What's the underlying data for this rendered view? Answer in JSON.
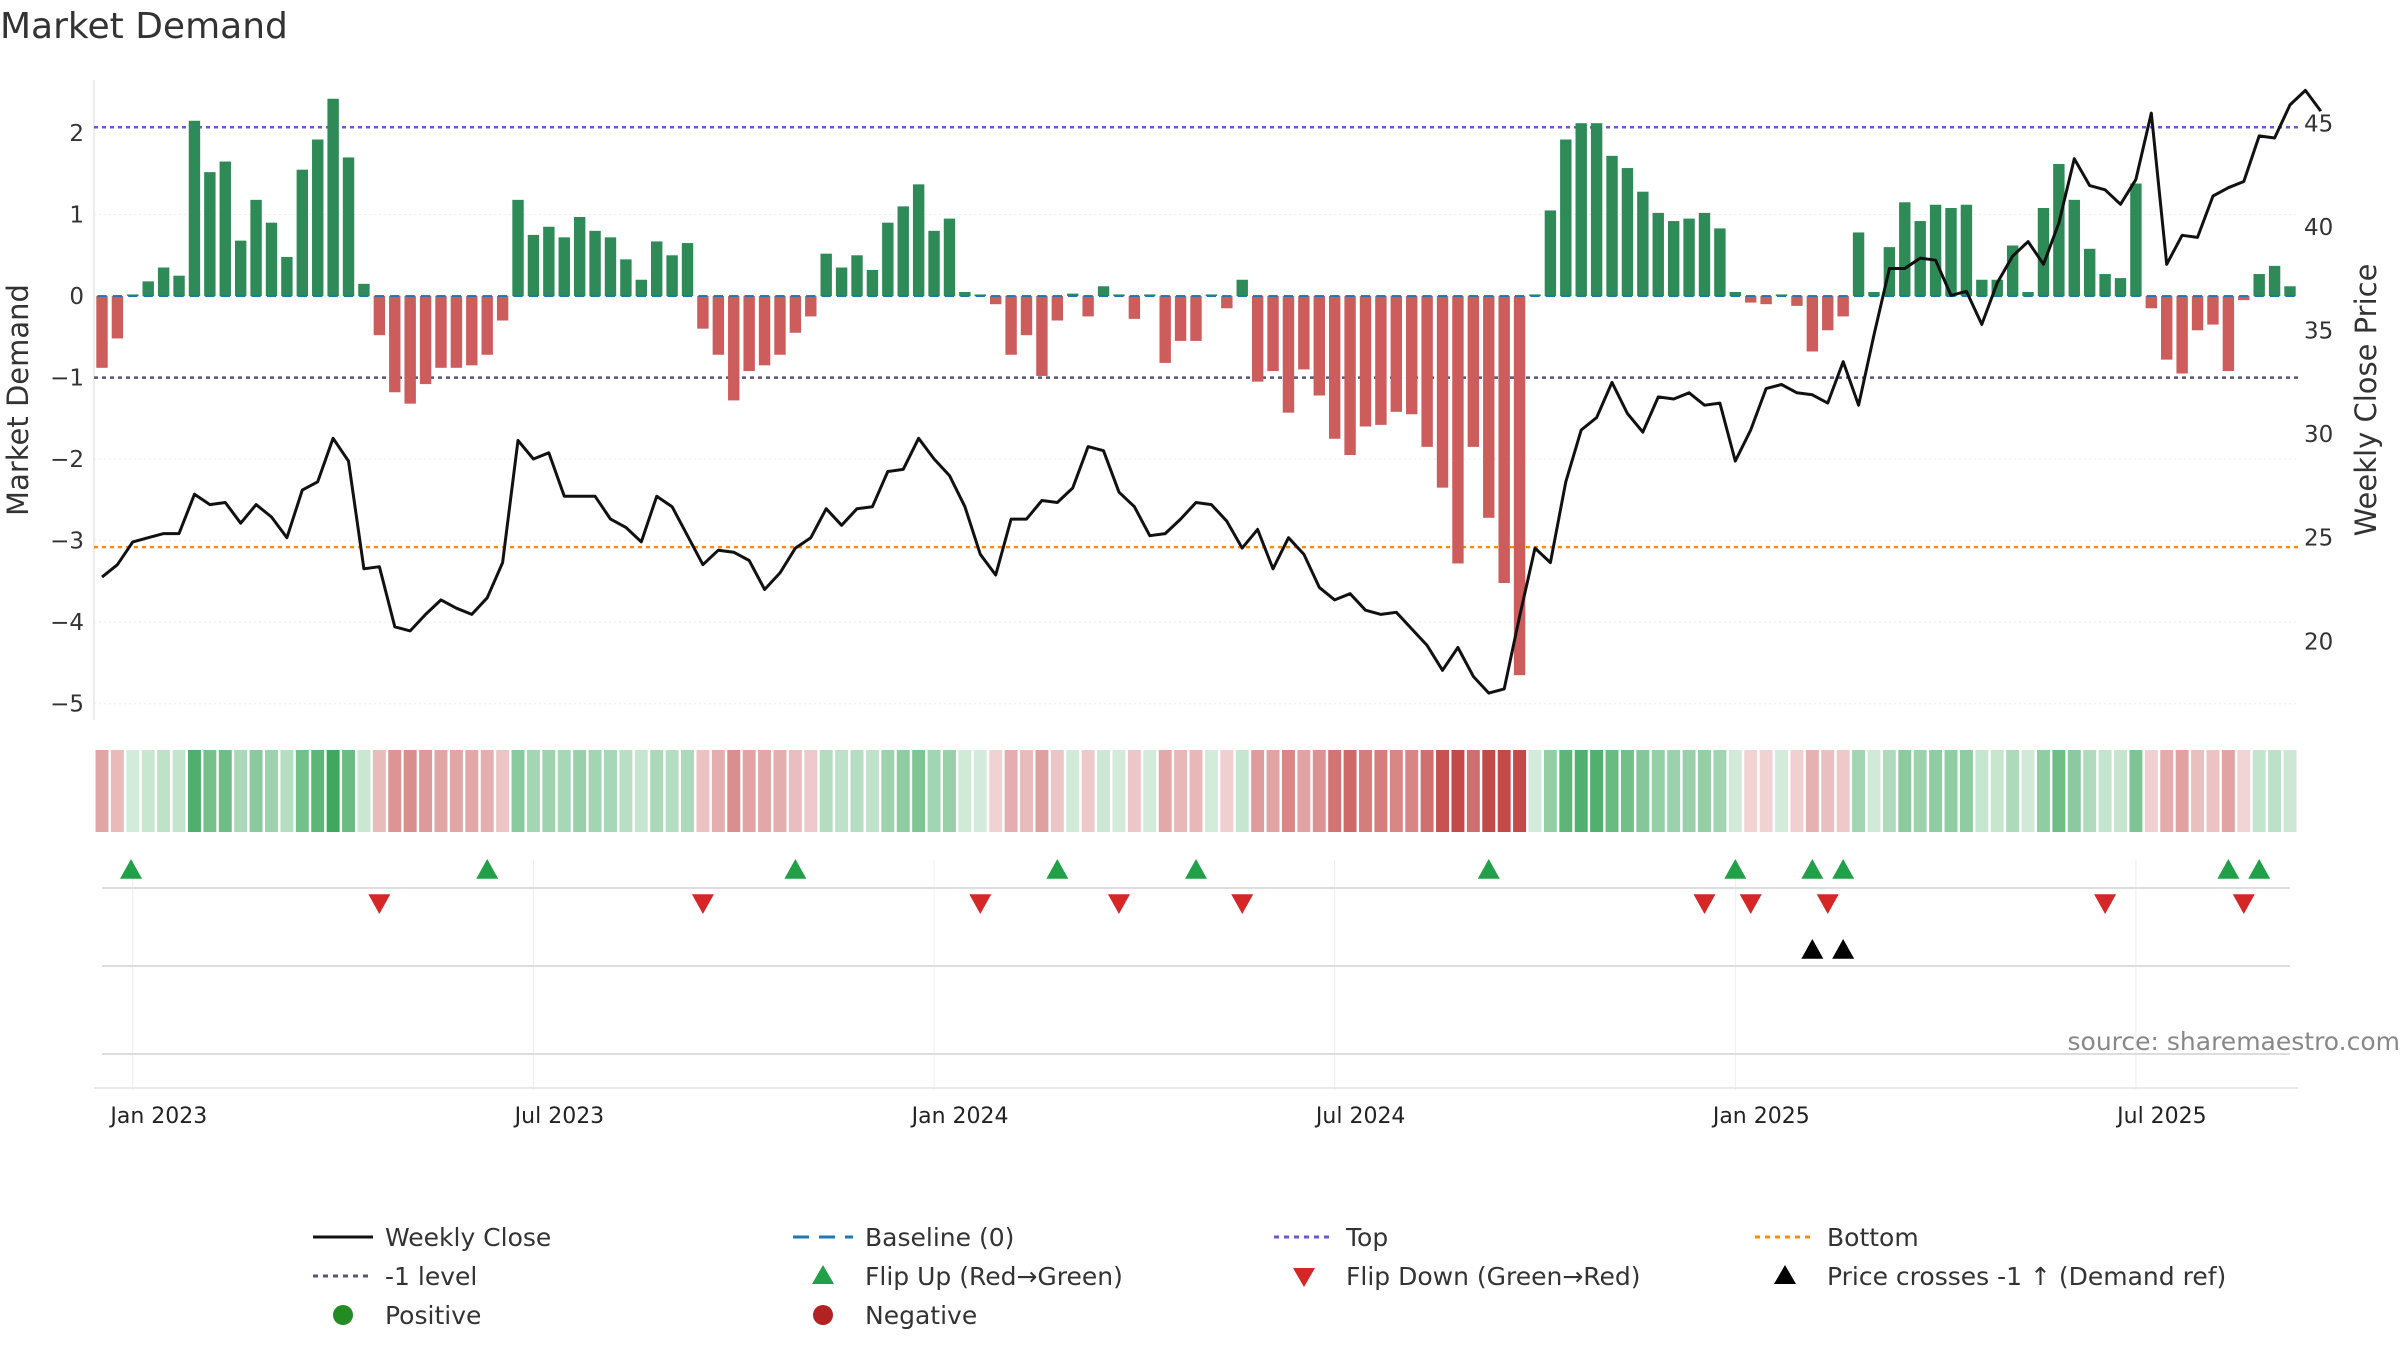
{
  "colors": {
    "positive_bar": "#2e8b57",
    "negative_bar": "#cd5c5c",
    "price_line": "#111111",
    "baseline": "#1f77b4",
    "top_line": "#6a5acd",
    "minus1_line": "#555577",
    "bottom_line": "#ff8c00",
    "flip_up": "#22a047",
    "flip_down": "#d62728",
    "cross": "#000000",
    "positive_dot": "#228b22",
    "negative_dot": "#b22222",
    "source": "#888888"
  },
  "source_text": "source: sharemaestro.com",
  "chart_data": {
    "type": "bar+line",
    "title": "Market Demand",
    "ylabel": "Market Demand",
    "y2label": "Weekly Close Price",
    "ylim": [
      -5.2,
      2.65
    ],
    "y2lim": [
      16.2,
      47.1
    ],
    "yticks": [
      2,
      1,
      0,
      -1,
      -2,
      -3,
      -4,
      -5
    ],
    "ytick_labels": [
      "2",
      "1",
      "0",
      "−1",
      "−2",
      "−3",
      "−4",
      "−5"
    ],
    "y2ticks": [
      45,
      40,
      35,
      30,
      25,
      20
    ],
    "x_labels": [
      "Jan 2023",
      "Jul 2023",
      "Jan 2024",
      "Jul 2024",
      "Jan 2025",
      "Jul 2025"
    ],
    "x_label_weeks": [
      2,
      28,
      54,
      80,
      106,
      132
    ],
    "reference_lines": {
      "top": 2.07,
      "minus1": -1.0,
      "bottom": -3.08,
      "baseline": 0
    },
    "demand": [
      -0.88,
      -0.52,
      0.02,
      0.18,
      0.35,
      0.25,
      2.15,
      1.52,
      1.65,
      0.68,
      1.18,
      0.9,
      0.48,
      1.55,
      1.92,
      2.42,
      1.7,
      0.15,
      -0.48,
      -1.18,
      -1.32,
      -1.08,
      -0.88,
      -0.88,
      -0.85,
      -0.72,
      -0.3,
      1.18,
      0.75,
      0.85,
      0.72,
      0.97,
      0.8,
      0.72,
      0.45,
      0.2,
      0.67,
      0.5,
      0.65,
      -0.4,
      -0.72,
      -1.28,
      -0.92,
      -0.85,
      -0.72,
      -0.45,
      -0.25,
      0.52,
      0.35,
      0.5,
      0.32,
      0.9,
      1.1,
      1.37,
      0.8,
      0.95,
      0.05,
      0.02,
      -0.1,
      -0.72,
      -0.48,
      -0.98,
      -0.3,
      0.03,
      -0.25,
      0.12,
      0.02,
      -0.28,
      0.02,
      -0.82,
      -0.55,
      -0.55,
      0.02,
      -0.15,
      0.2,
      -1.05,
      -0.92,
      -1.43,
      -0.9,
      -1.22,
      -1.75,
      -1.95,
      -1.6,
      -1.58,
      -1.42,
      -1.45,
      -1.85,
      -2.35,
      -3.28,
      -1.85,
      -2.72,
      -3.52,
      -4.65,
      0.02,
      1.05,
      1.92,
      2.12,
      2.12,
      1.72,
      1.57,
      1.28,
      1.02,
      0.92,
      0.95,
      1.02,
      0.83,
      0.05,
      -0.08,
      -0.1,
      0.02,
      -0.12,
      -0.68,
      -0.42,
      -0.25,
      0.78,
      0.05,
      0.6,
      1.15,
      0.92,
      1.12,
      1.08,
      1.12,
      0.2,
      0.2,
      0.62,
      0.05,
      1.08,
      1.62,
      1.18,
      0.58,
      0.27,
      0.22,
      1.38,
      -0.15,
      -0.78,
      -0.95,
      -0.42,
      -0.35,
      -0.92,
      -0.05,
      0.27,
      0.37,
      0.12
    ],
    "weekly_close": [
      23.1,
      23.7,
      24.8,
      25.0,
      25.2,
      25.2,
      27.1,
      26.6,
      26.7,
      25.7,
      26.6,
      26.0,
      25.0,
      27.3,
      27.7,
      29.8,
      28.7,
      23.5,
      23.6,
      20.7,
      20.5,
      21.3,
      22.0,
      21.6,
      21.3,
      22.1,
      23.8,
      29.7,
      28.8,
      29.1,
      27.0,
      27.0,
      27.0,
      25.9,
      25.5,
      24.8,
      27.0,
      26.5,
      25.1,
      23.7,
      24.4,
      24.3,
      23.9,
      22.5,
      23.3,
      24.5,
      25.0,
      26.4,
      25.6,
      26.4,
      26.5,
      28.2,
      28.3,
      29.8,
      28.8,
      28.0,
      26.5,
      24.2,
      23.2,
      25.9,
      25.9,
      26.8,
      26.7,
      27.4,
      29.4,
      29.2,
      27.2,
      26.5,
      25.1,
      25.2,
      25.9,
      26.7,
      26.6,
      25.8,
      24.5,
      25.4,
      23.5,
      25.0,
      24.2,
      22.6,
      22.0,
      22.3,
      21.5,
      21.3,
      21.4,
      20.6,
      19.8,
      18.6,
      19.7,
      18.3,
      17.5,
      17.7,
      21.2,
      24.5,
      23.8,
      27.7,
      30.2,
      30.8,
      32.5,
      31.0,
      30.1,
      31.8,
      31.7,
      32.0,
      31.4,
      31.5,
      28.7,
      30.2,
      32.2,
      32.4,
      32.0,
      31.9,
      31.5,
      33.5,
      31.4,
      34.8,
      38.0,
      38.0,
      38.5,
      38.4,
      36.7,
      36.9,
      35.3,
      37.3,
      38.6,
      39.3,
      38.2,
      40.2,
      43.3,
      42.0,
      41.8,
      41.1,
      42.3,
      45.5,
      38.2,
      39.6,
      39.5,
      41.5,
      41.9,
      42.2,
      44.4,
      44.3,
      45.9,
      46.6,
      45.6
    ],
    "flip_up_weeks": [
      0,
      25,
      45,
      62,
      71,
      90,
      106,
      111,
      113,
      138,
      140
    ],
    "flip_down_weeks": [
      18,
      39,
      57,
      66,
      74,
      104,
      107,
      112,
      130,
      139
    ],
    "price_cross_weeks": [
      111,
      113
    ],
    "legend": [
      {
        "label": "Weekly Close",
        "kind": "line-solid",
        "color": "#111111"
      },
      {
        "label": "Baseline (0)",
        "kind": "line-dash",
        "color": "#1f77b4"
      },
      {
        "label": "Top",
        "kind": "line-dot",
        "color": "#6a5acd"
      },
      {
        "label": "Bottom",
        "kind": "line-dot",
        "color": "#ff8c00"
      },
      {
        "label": "-1 level",
        "kind": "line-dot",
        "color": "#555577"
      },
      {
        "label": "Flip Up (Red→Green)",
        "kind": "tri-up",
        "color": "#22a047"
      },
      {
        "label": "Flip Down (Green→Red)",
        "kind": "tri-down",
        "color": "#d62728"
      },
      {
        "label": "Price crosses -1 ↑ (Demand ref)",
        "kind": "tri-up",
        "color": "#000000"
      },
      {
        "label": "Positive",
        "kind": "dot",
        "color": "#228b22"
      },
      {
        "label": "Negative",
        "kind": "dot",
        "color": "#b22222"
      }
    ]
  }
}
